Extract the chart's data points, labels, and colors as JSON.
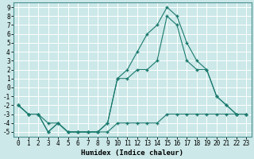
{
  "xlabel": "Humidex (Indice chaleur)",
  "background_color": "#cce8e8",
  "grid_color": "#ffffff",
  "line_color": "#1a7a6e",
  "x_values": [
    0,
    1,
    2,
    3,
    4,
    5,
    6,
    7,
    8,
    9,
    10,
    11,
    12,
    13,
    14,
    15,
    16,
    17,
    18,
    19,
    20,
    21,
    22,
    23
  ],
  "line1": [
    -2,
    -3,
    -3,
    -5,
    -4,
    -5,
    -5,
    -5,
    -5,
    -5,
    -4,
    -4,
    -4,
    -4,
    -4,
    -3,
    -3,
    -3,
    -3,
    -3,
    -3,
    -3,
    -3,
    -3
  ],
  "line2": [
    -2,
    -3,
    -3,
    -4,
    -4,
    -5,
    -5,
    -5,
    -5,
    -4,
    1,
    1,
    2,
    2,
    3,
    8,
    7,
    3,
    2,
    2,
    -1,
    -2,
    -3,
    -3
  ],
  "line3": [
    -2,
    -3,
    -3,
    -5,
    -4,
    -5,
    -5,
    -5,
    -5,
    -4,
    1,
    2,
    4,
    6,
    7,
    9,
    8,
    5,
    3,
    2,
    -1,
    -2,
    -3,
    -3
  ],
  "ylim": [
    -5.5,
    9.5
  ],
  "xlim": [
    -0.5,
    23.5
  ],
  "yticks": [
    -5,
    -4,
    -3,
    -2,
    -1,
    0,
    1,
    2,
    3,
    4,
    5,
    6,
    7,
    8,
    9
  ],
  "xticks": [
    0,
    1,
    2,
    3,
    4,
    5,
    6,
    7,
    8,
    9,
    10,
    11,
    12,
    13,
    14,
    15,
    16,
    17,
    18,
    19,
    20,
    21,
    22,
    23
  ],
  "tick_fontsize": 5.5,
  "xlabel_fontsize": 6.5
}
